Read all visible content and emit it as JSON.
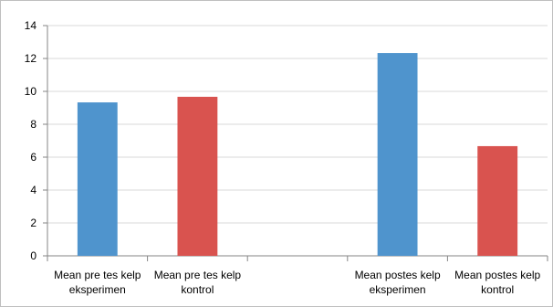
{
  "chart_data": {
    "type": "bar",
    "title": "",
    "xlabel": "",
    "ylabel": "",
    "ylim": [
      0,
      14
    ],
    "yticks": [
      0,
      2,
      4,
      6,
      8,
      10,
      12,
      14
    ],
    "grid": true,
    "legend": "none",
    "slots": [
      {
        "label_lines": [
          "Mean pre tes kelp",
          "eksperimen"
        ],
        "value": 9.33,
        "color": "#4f94cd"
      },
      {
        "label_lines": [
          "Mean pre tes kelp",
          "kontrol"
        ],
        "value": 9.67,
        "color": "#d9534f"
      },
      {
        "label_lines": [],
        "value": null,
        "color": ""
      },
      {
        "label_lines": [
          "Mean postes kelp",
          "eksperimen"
        ],
        "value": 12.33,
        "color": "#4f94cd"
      },
      {
        "label_lines": [
          "Mean  postes kelp",
          "kontrol"
        ],
        "value": 6.67,
        "color": "#d9534f"
      }
    ]
  }
}
